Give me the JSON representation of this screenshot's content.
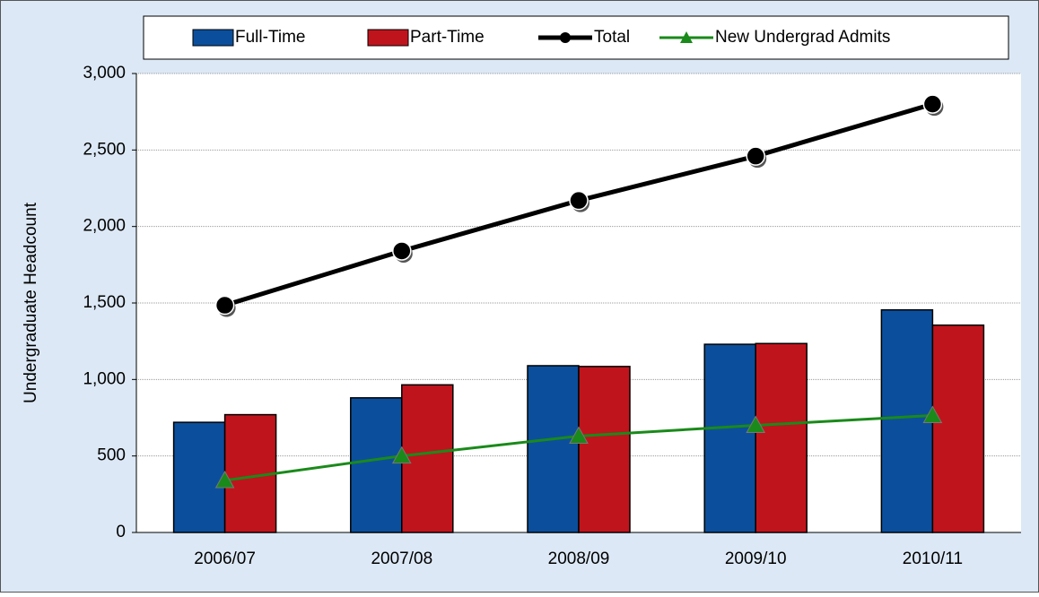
{
  "chart_data": {
    "type": "bar-line",
    "y_label": "Undergraduate Headcount",
    "categories": [
      "2006/07",
      "2007/08",
      "2008/09",
      "2009/10",
      "2010/11"
    ],
    "series": [
      {
        "name": "Full-Time",
        "type": "bar",
        "color": "#0b4f9c",
        "values": [
          720,
          880,
          1090,
          1230,
          1455
        ]
      },
      {
        "name": "Part-Time",
        "type": "bar",
        "color": "#c0141d",
        "values": [
          770,
          965,
          1085,
          1235,
          1355
        ]
      },
      {
        "name": "Total",
        "type": "line",
        "color": "#000000",
        "values": [
          1485,
          1840,
          2170,
          2460,
          2800
        ]
      },
      {
        "name": "New Undergrad Admits",
        "type": "line",
        "color": "#1a8a1a",
        "values": [
          340,
          500,
          630,
          700,
          765
        ]
      }
    ],
    "ylim": [
      0,
      3000
    ],
    "yticks": [
      0,
      500,
      {
        "value": 1000,
        "label": "1,000"
      },
      {
        "value": 1500,
        "label": "1,500"
      },
      {
        "value": 2000,
        "label": "2,000"
      },
      {
        "value": 2500,
        "label": "2,500"
      },
      {
        "value": 3000,
        "label": "3,000"
      }
    ],
    "grid": true,
    "legend": "top"
  }
}
